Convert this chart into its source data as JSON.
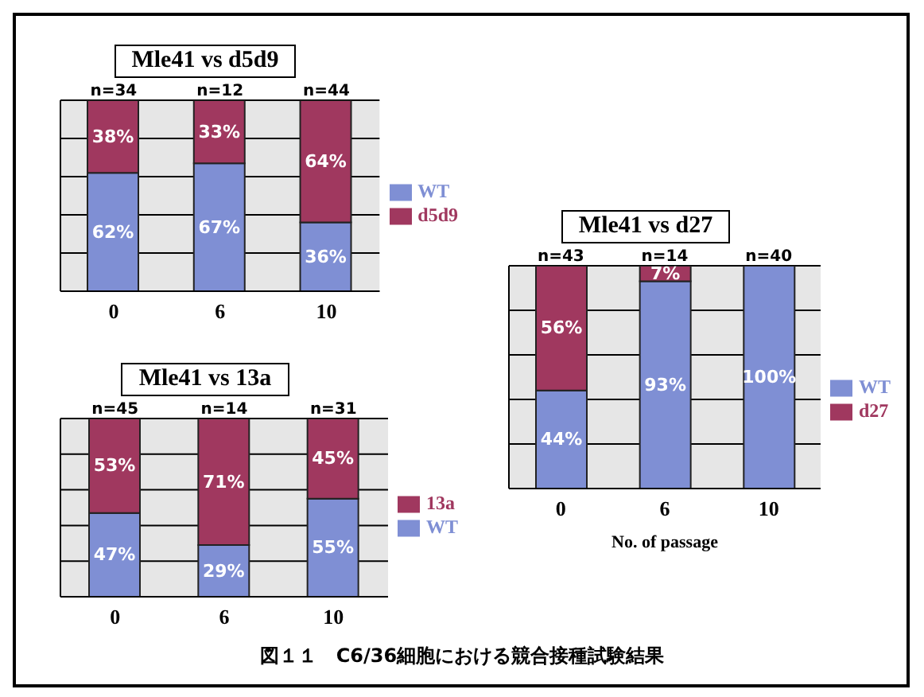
{
  "chart_data": [
    {
      "type": "bar",
      "title": "Mle41 vs d5d9",
      "categories": [
        "0",
        "6",
        "10"
      ],
      "stacked": true,
      "ylim": [
        0,
        100
      ],
      "yticks": [
        {
          "value": 0,
          "label": null
        },
        {
          "value": 20,
          "label": null
        },
        {
          "value": 40,
          "label": null
        },
        {
          "value": 60,
          "label": null
        },
        {
          "value": 80,
          "label": null
        },
        {
          "value": 100,
          "label": null
        }
      ],
      "tick_labels": "x",
      "grid": "y",
      "legend": "right",
      "series": [
        {
          "name": "WT",
          "color": "#7f8fd4",
          "values": [
            62,
            67,
            36
          ],
          "value_labels": [
            "62%",
            "67%",
            "36%"
          ]
        },
        {
          "name": "d5d9",
          "color": "#a0385f",
          "values": [
            38,
            33,
            64
          ],
          "value_labels": [
            "38%",
            "33%",
            "64%"
          ]
        }
      ],
      "annotations": [
        {
          "text": "n=34",
          "x": "0",
          "y": 100
        },
        {
          "text": "n=12",
          "x": "6",
          "y": 100
        },
        {
          "text": "n=44",
          "x": "10",
          "y": 100
        }
      ]
    },
    {
      "type": "bar",
      "title": "Mle41 vs 13a",
      "categories": [
        "0",
        "6",
        "10"
      ],
      "stacked": true,
      "ylim": [
        0,
        100
      ],
      "yticks": [
        {
          "value": 0,
          "label": null
        },
        {
          "value": 20,
          "label": null
        },
        {
          "value": 40,
          "label": null
        },
        {
          "value": 60,
          "label": null
        },
        {
          "value": 80,
          "label": null
        },
        {
          "value": 100,
          "label": null
        }
      ],
      "tick_labels": "x",
      "grid": "y",
      "legend": "right",
      "series": [
        {
          "name": "WT",
          "color": "#7f8fd4",
          "values": [
            47,
            29,
            55
          ],
          "value_labels": [
            "47%",
            "29%",
            "55%"
          ]
        },
        {
          "name": "13a",
          "color": "#a0385f",
          "values": [
            53,
            71,
            45
          ],
          "value_labels": [
            "53%",
            "71%",
            "45%"
          ]
        }
      ],
      "annotations": [
        {
          "text": "n=45",
          "x": "0",
          "y": 100
        },
        {
          "text": "n=14",
          "x": "6",
          "y": 100
        },
        {
          "text": "n=31",
          "x": "10",
          "y": 100
        }
      ]
    },
    {
      "type": "bar",
      "title": "Mle41 vs d27",
      "xlabel": "No. of passage",
      "categories": [
        "0",
        "6",
        "10"
      ],
      "stacked": true,
      "ylim": [
        0,
        100
      ],
      "yticks": [
        {
          "value": 0,
          "label": null
        },
        {
          "value": 20,
          "label": null
        },
        {
          "value": 40,
          "label": null
        },
        {
          "value": 60,
          "label": null
        },
        {
          "value": 80,
          "label": null
        },
        {
          "value": 100,
          "label": null
        }
      ],
      "tick_labels": "x",
      "grid": "y",
      "legend": "right",
      "series": [
        {
          "name": "WT",
          "color": "#7f8fd4",
          "values": [
            44,
            93,
            100
          ],
          "value_labels": [
            "44%",
            "93%",
            "100%"
          ]
        },
        {
          "name": "d27",
          "color": "#a0385f",
          "values": [
            56,
            7,
            0
          ],
          "value_labels": [
            "56%",
            "7%",
            null
          ]
        }
      ],
      "annotations": [
        {
          "text": "n=43",
          "x": "0",
          "y": 100
        },
        {
          "text": "n=14",
          "x": "6",
          "y": 100
        },
        {
          "text": "n=40",
          "x": "10",
          "y": 100
        },
        "図１１　C6/36細胞における競合接種試験結果"
      ]
    }
  ]
}
